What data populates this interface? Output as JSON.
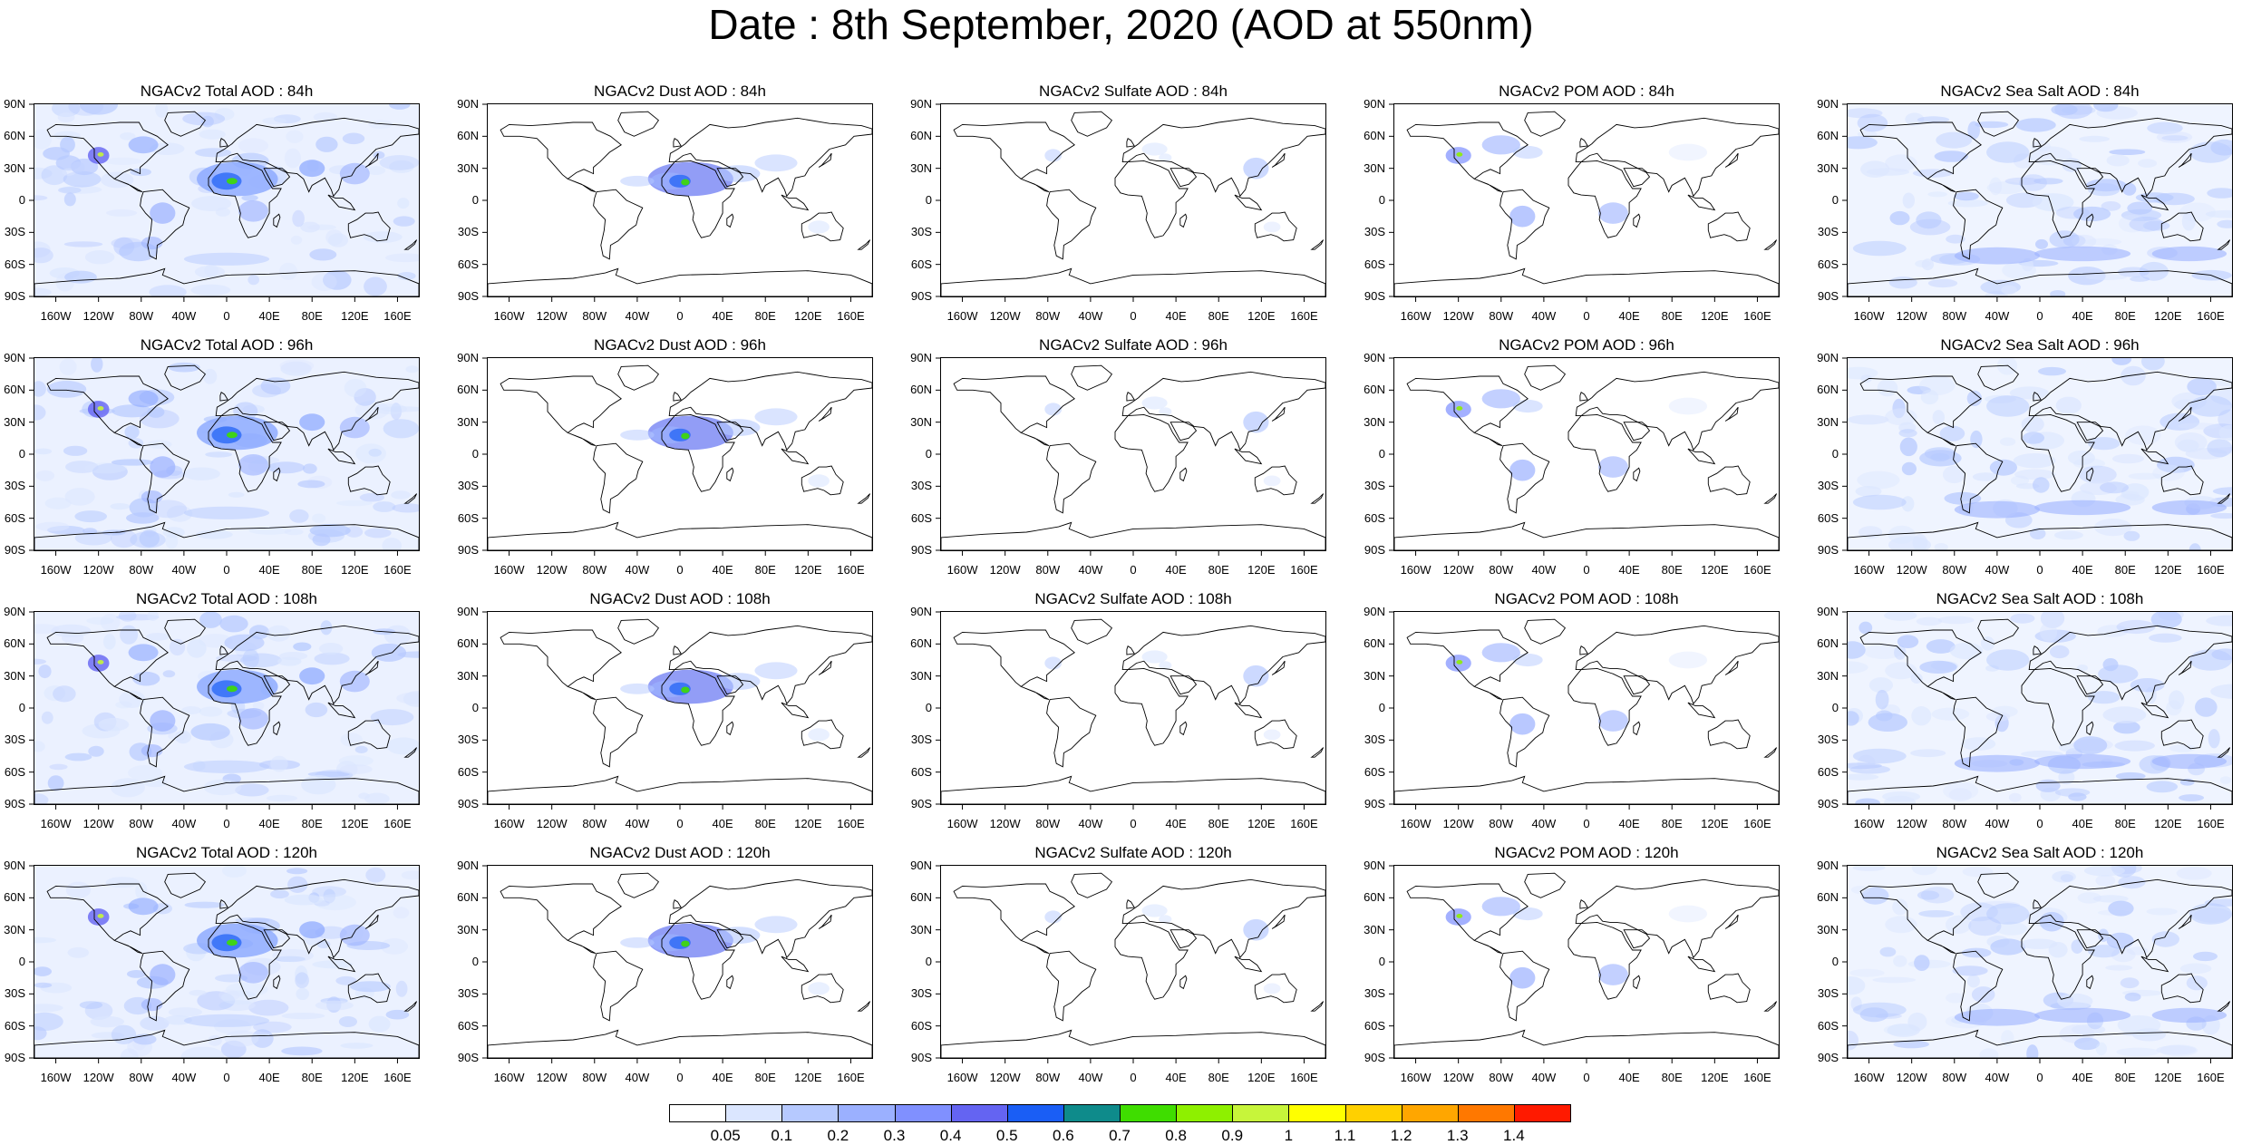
{
  "title": "Date : 8th September, 2020 (AOD at 550nm)",
  "lat_ticks": [
    "90N",
    "60N",
    "30N",
    "0",
    "30S",
    "60S",
    "90S"
  ],
  "lon_ticks": [
    "160W",
    "120W",
    "80W",
    "40W",
    "0",
    "40E",
    "80E",
    "120E",
    "160E"
  ],
  "colorbar": {
    "levels": [
      "0.05",
      "0.1",
      "0.2",
      "0.3",
      "0.4",
      "0.5",
      "0.6",
      "0.7",
      "0.8",
      "0.9",
      "1",
      "1.1",
      "1.2",
      "1.3",
      "1.4"
    ],
    "colors": [
      "#ffffff",
      "#dbe6ff",
      "#b6c9ff",
      "#9bb0ff",
      "#8090ff",
      "#6464f2",
      "#1a5ef5",
      "#0e8b8b",
      "#3fdd00",
      "#8ef000",
      "#c7f53a",
      "#ffff00",
      "#ffd000",
      "#ffa600",
      "#ff7800",
      "#ff1a00"
    ]
  },
  "species_colors": {
    "total": "#8aa7ff",
    "dust": "#7f8cf5",
    "sulfate": "#b2c4ff",
    "pom": "#8c9cff",
    "seasalt": "#a8bdff"
  },
  "panels": [
    {
      "title": "NGACv2 Total AOD : 84h",
      "species": "total"
    },
    {
      "title": "NGACv2 Dust AOD : 84h",
      "species": "dust"
    },
    {
      "title": "NGACv2 Sulfate AOD : 84h",
      "species": "sulfate"
    },
    {
      "title": "NGACv2 POM AOD : 84h",
      "species": "pom"
    },
    {
      "title": "NGACv2 Sea Salt AOD : 84h",
      "species": "seasalt"
    },
    {
      "title": "NGACv2 Total AOD : 96h",
      "species": "total"
    },
    {
      "title": "NGACv2 Dust AOD : 96h",
      "species": "dust"
    },
    {
      "title": "NGACv2 Sulfate AOD : 96h",
      "species": "sulfate"
    },
    {
      "title": "NGACv2 POM AOD : 96h",
      "species": "pom"
    },
    {
      "title": "NGACv2 Sea Salt AOD : 96h",
      "species": "seasalt"
    },
    {
      "title": "NGACv2 Total AOD : 108h",
      "species": "total"
    },
    {
      "title": "NGACv2 Dust AOD : 108h",
      "species": "dust"
    },
    {
      "title": "NGACv2 Sulfate AOD : 108h",
      "species": "sulfate"
    },
    {
      "title": "NGACv2 POM AOD : 108h",
      "species": "pom"
    },
    {
      "title": "NGACv2 Sea Salt AOD : 108h",
      "species": "seasalt"
    },
    {
      "title": "NGACv2 Total AOD : 120h",
      "species": "total"
    },
    {
      "title": "NGACv2 Dust AOD : 120h",
      "species": "dust"
    },
    {
      "title": "NGACv2 Sulfate AOD : 120h",
      "species": "sulfate"
    },
    {
      "title": "NGACv2 POM AOD : 120h",
      "species": "pom"
    },
    {
      "title": "NGACv2 Sea Salt  AOD : 120h",
      "species": "seasalt"
    }
  ]
}
